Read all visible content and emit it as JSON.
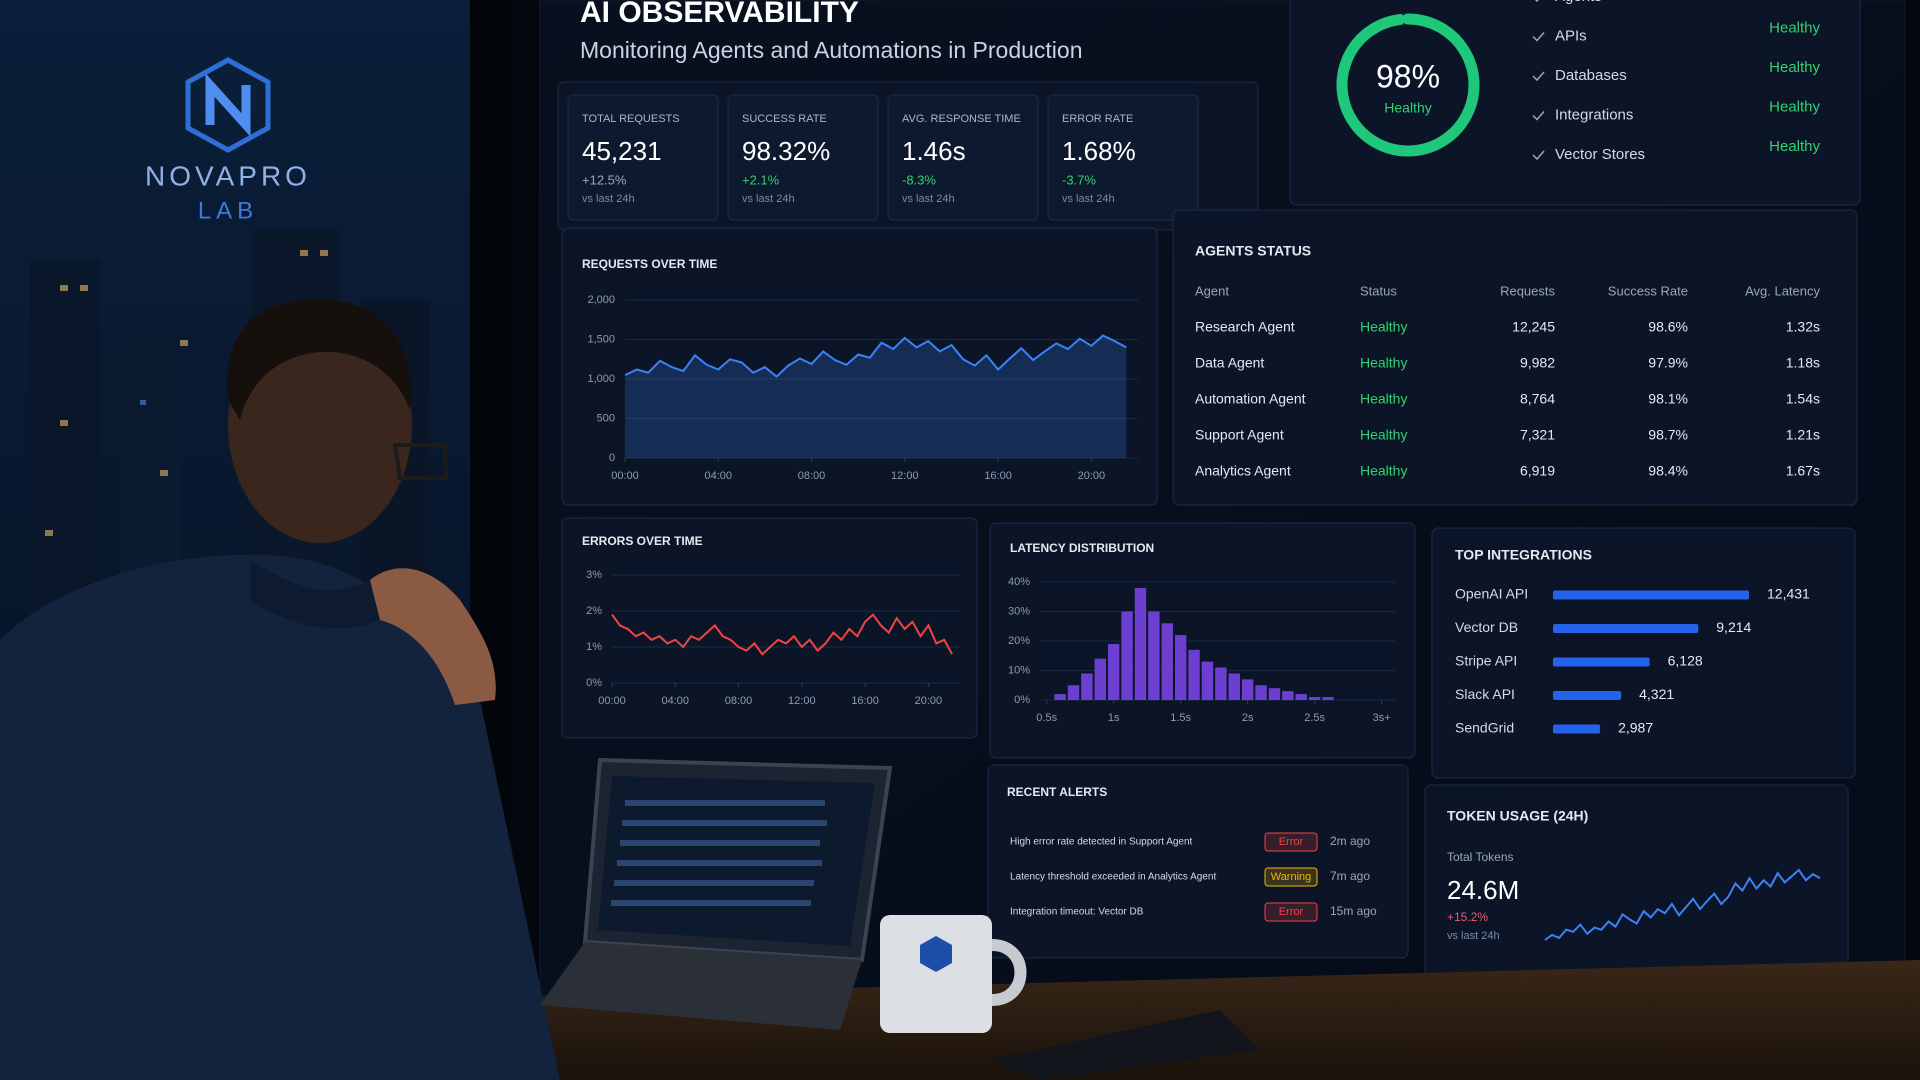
{
  "brand": {
    "name": "NOVAPRO",
    "sub": "LAB"
  },
  "header": {
    "title": "AI OBSERVABILITY",
    "subtitle": "Monitoring Agents and Automations in Production"
  },
  "kpis": [
    {
      "label": "TOTAL REQUESTS",
      "value": "45,231",
      "delta": "+12.5%",
      "note": "vs last 24h",
      "delta_color": "#9aa6b8"
    },
    {
      "label": "SUCCESS RATE",
      "value": "98.32%",
      "delta": "+2.1%",
      "note": "vs last 24h",
      "delta_color": "#2fd36f"
    },
    {
      "label": "AVG. RESPONSE TIME",
      "value": "1.46s",
      "delta": "-8.3%",
      "note": "vs last 24h",
      "delta_color": "#2fd36f"
    },
    {
      "label": "ERROR RATE",
      "value": "1.68%",
      "delta": "-3.7%",
      "note": "vs last 24h",
      "delta_color": "#2fd36f"
    }
  ],
  "health": {
    "type": "pie",
    "value": 98,
    "value_label": "98%",
    "status": "Healthy",
    "ylim": [
      0,
      100
    ],
    "color": "#1fc77a",
    "status_color": "#2fd36f",
    "items": [
      {
        "name": "Agents",
        "status": "Healthy"
      },
      {
        "name": "APIs",
        "status": "Healthy"
      },
      {
        "name": "Databases",
        "status": "Healthy"
      },
      {
        "name": "Integrations",
        "status": "Healthy"
      },
      {
        "name": "Vector Stores",
        "status": "Healthy"
      }
    ]
  },
  "requests_chart": {
    "type": "line",
    "title": "REQUESTS OVER TIME",
    "color": "#3b82f6",
    "x": [
      0,
      0.5,
      1,
      1.5,
      2,
      2.5,
      3,
      3.5,
      4,
      4.5,
      5,
      5.5,
      6,
      6.5,
      7,
      7.5,
      8,
      8.5,
      9,
      9.5,
      10,
      10.5,
      11,
      11.5,
      12,
      12.5,
      13,
      13.5,
      14,
      14.5,
      15,
      15.5,
      16,
      16.5,
      17,
      17.5,
      18,
      18.5,
      19,
      19.5,
      20,
      20.5,
      21,
      21.5
    ],
    "values": [
      1050,
      1120,
      1080,
      1230,
      1150,
      1100,
      1300,
      1180,
      1120,
      1250,
      1210,
      1080,
      1150,
      1030,
      1170,
      1260,
      1190,
      1350,
      1240,
      1180,
      1310,
      1270,
      1460,
      1380,
      1520,
      1400,
      1480,
      1350,
      1430,
      1250,
      1170,
      1300,
      1120,
      1260,
      1390,
      1240,
      1350,
      1450,
      1380,
      1510,
      1420,
      1550,
      1480,
      1400
    ],
    "xlim": [
      0,
      22
    ],
    "ylim": [
      0,
      2000
    ],
    "xticks": [
      {
        "value": 0,
        "label": "00:00"
      },
      {
        "value": 4,
        "label": "04:00"
      },
      {
        "value": 8,
        "label": "08:00"
      },
      {
        "value": 12,
        "label": "12:00"
      },
      {
        "value": 16,
        "label": "16:00"
      },
      {
        "value": 20,
        "label": "20:00"
      }
    ],
    "yticks": [
      0,
      500,
      {
        "value": 1000,
        "label": "1,000"
      },
      {
        "value": 1500,
        "label": "1,500"
      },
      {
        "value": 2000,
        "label": "2,000"
      }
    ]
  },
  "agents": {
    "title": "AGENTS STATUS",
    "status_color": "#2fd36f",
    "columns": [
      "Agent",
      "Status",
      "Requests",
      "Success Rate",
      "Avg. Latency"
    ],
    "rows": [
      [
        "Research Agent",
        "Healthy",
        "12,245",
        "98.6%",
        "1.32s"
      ],
      [
        "Data Agent",
        "Healthy",
        "9,982",
        "97.9%",
        "1.18s"
      ],
      [
        "Automation Agent",
        "Healthy",
        "8,764",
        "98.1%",
        "1.54s"
      ],
      [
        "Support Agent",
        "Healthy",
        "7,321",
        "98.7%",
        "1.21s"
      ],
      [
        "Analytics Agent",
        "Healthy",
        "6,919",
        "98.4%",
        "1.67s"
      ]
    ]
  },
  "errors_chart": {
    "type": "line",
    "title": "ERRORS OVER TIME",
    "color": "#ef4444",
    "x": [
      0,
      0.5,
      1,
      1.5,
      2,
      2.5,
      3,
      3.5,
      4,
      4.5,
      5,
      5.5,
      6,
      6.5,
      7,
      7.5,
      8,
      8.5,
      9,
      9.5,
      10,
      10.5,
      11,
      11.5,
      12,
      12.5,
      13,
      13.5,
      14,
      14.5,
      15,
      15.5,
      16,
      16.5,
      17,
      17.5,
      18,
      18.5,
      19,
      19.5,
      20,
      20.5,
      21,
      21.5
    ],
    "values": [
      1.9,
      1.6,
      1.5,
      1.3,
      1.4,
      1.2,
      1.3,
      1.1,
      1.2,
      1.0,
      1.3,
      1.2,
      1.4,
      1.6,
      1.3,
      1.2,
      1.0,
      0.9,
      1.1,
      0.8,
      1.0,
      1.2,
      1.1,
      1.3,
      1.0,
      1.2,
      0.9,
      1.1,
      1.4,
      1.2,
      1.5,
      1.3,
      1.7,
      1.9,
      1.6,
      1.4,
      1.8,
      1.5,
      1.7,
      1.3,
      1.6,
      1.1,
      1.2,
      0.8
    ],
    "xlim": [
      0,
      22
    ],
    "ylim": [
      0,
      3
    ],
    "xticks": [
      {
        "value": 0,
        "label": "00:00"
      },
      {
        "value": 4,
        "label": "04:00"
      },
      {
        "value": 8,
        "label": "08:00"
      },
      {
        "value": 12,
        "label": "12:00"
      },
      {
        "value": 16,
        "label": "16:00"
      },
      {
        "value": 20,
        "label": "20:00"
      }
    ],
    "yticks": [
      {
        "value": 0,
        "label": "0%"
      },
      {
        "value": 1,
        "label": "1%"
      },
      {
        "value": 2,
        "label": "2%"
      },
      {
        "value": 3,
        "label": "3%"
      }
    ]
  },
  "latency_chart": {
    "type": "histogram",
    "title": "LATENCY DISTRIBUTION",
    "color": "#6d3fd1",
    "bins": [
      0.55,
      0.65,
      0.75,
      0.85,
      0.95,
      1.05,
      1.15,
      1.25,
      1.35,
      1.45,
      1.55,
      1.65,
      1.75,
      1.85,
      1.95,
      2.05,
      2.15,
      2.25,
      2.35,
      2.45,
      2.55,
      2.65
    ],
    "values": [
      2,
      5,
      9,
      14,
      19,
      30,
      38,
      30,
      26,
      22,
      17,
      13,
      11,
      9,
      7,
      5,
      4,
      3,
      2,
      1,
      1
    ],
    "xlim": [
      0.45,
      3.1
    ],
    "ylim": [
      0,
      40
    ],
    "xticks": [
      {
        "value": 0.5,
        "label": "0.5s"
      },
      {
        "value": 1,
        "label": "1s"
      },
      {
        "value": 1.5,
        "label": "1.5s"
      },
      {
        "value": 2,
        "label": "2s"
      },
      {
        "value": 2.5,
        "label": "2.5s"
      },
      {
        "value": 3,
        "label": "3s+"
      }
    ],
    "yticks": [
      {
        "value": 0,
        "label": "0%"
      },
      {
        "value": 10,
        "label": "10%"
      },
      {
        "value": 20,
        "label": "20%"
      },
      {
        "value": 30,
        "label": "30%"
      },
      {
        "value": 40,
        "label": "40%"
      }
    ]
  },
  "integrations": {
    "type": "bar",
    "title": "TOP INTEGRATIONS",
    "color": "#2563eb",
    "categories": [
      "OpenAI API",
      "Vector DB",
      "Stripe API",
      "Slack API",
      "SendGrid"
    ],
    "values": [
      12431,
      9214,
      6128,
      4321,
      2987
    ],
    "value_labels": [
      "12,431",
      "9,214",
      "6,128",
      "4,321",
      "2,987"
    ]
  },
  "alerts": {
    "title": "RECENT ALERTS",
    "items": [
      {
        "text": "High error rate detected in Support Agent",
        "level": "Error",
        "time": "2m ago",
        "level_color": "#ef4444"
      },
      {
        "text": "Latency threshold exceeded in Analytics Agent",
        "level": "Warning",
        "time": "7m ago",
        "level_color": "#f5b400"
      },
      {
        "text": "Integration timeout: Vector DB",
        "level": "Error",
        "time": "15m ago",
        "level_color": "#ef4444"
      }
    ]
  },
  "tokens": {
    "type": "line",
    "title": "TOKEN USAGE (24H)",
    "label": "Total Tokens",
    "total": "24.6M",
    "delta": "+15.2%",
    "note": "vs last 24h",
    "color": "#3b82f6",
    "delta_color": "#ef5a6f",
    "values": [
      20,
      25,
      22,
      30,
      28,
      35,
      26,
      32,
      30,
      38,
      33,
      45,
      40,
      36,
      48,
      42,
      50,
      46,
      55,
      44,
      52,
      60,
      50,
      58,
      65,
      55,
      62,
      75,
      68,
      80,
      70,
      78,
      72,
      85,
      76,
      82,
      88,
      78,
      84,
      80
    ]
  }
}
